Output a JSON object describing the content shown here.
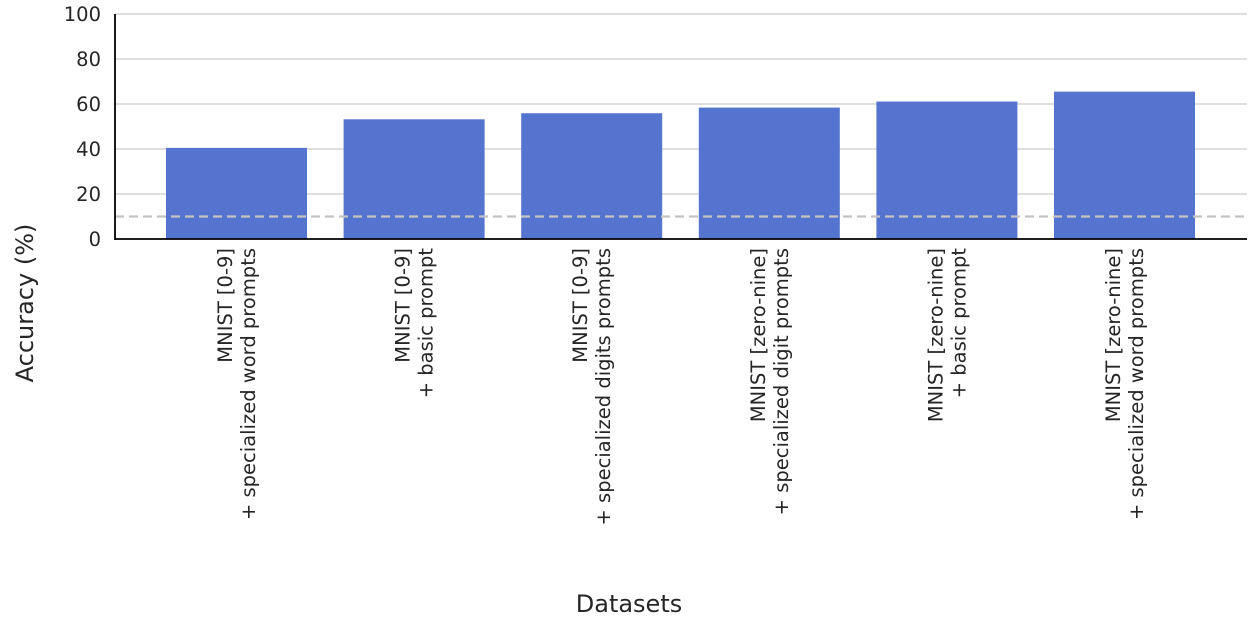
{
  "chart_data": {
    "type": "bar",
    "categories": [
      [
        "MNIST [0-9]",
        "+ specialized word prompts"
      ],
      [
        "MNIST [0-9]",
        "+ basic prompt"
      ],
      [
        "MNIST [0-9]",
        "+ specialized digits prompts"
      ],
      [
        "MNIST [zero-nine]",
        "+ specialized digit prompts"
      ],
      [
        "MNIST [zero-nine]",
        "+ basic prompt"
      ],
      [
        "MNIST [zero-nine]",
        "+ specialized word prompts"
      ]
    ],
    "values": [
      40.5,
      53.2,
      55.9,
      58.4,
      61.1,
      65.5
    ],
    "xlabel": "Datasets",
    "ylabel": "Accuracy (%)",
    "ylim": [
      0,
      100
    ],
    "yticks": [
      0,
      20,
      40,
      60,
      80,
      100
    ],
    "reference_line": 10,
    "grid": true,
    "colors": {
      "bar": "#5574cf",
      "grid": "#cccccc",
      "reference": "#c3c3c3",
      "axis": "#000000"
    }
  }
}
